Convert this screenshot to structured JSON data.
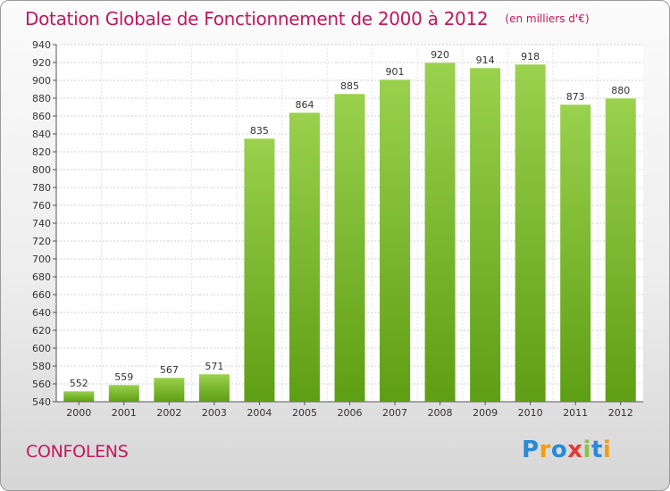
{
  "title": "Dotation Globale de Fonctionnement de 2000 à 2012",
  "subtitle": "(en milliers d'€)",
  "commune": "CONFOLENS",
  "brand": {
    "text": "Proxiti",
    "letters": [
      {
        "char": "P",
        "color": "#2a8ad8"
      },
      {
        "char": "r",
        "color": "#f39c12"
      },
      {
        "char": "o",
        "color": "#2a8ad8"
      },
      {
        "char": "x",
        "color": "#e53935"
      },
      {
        "char": "i",
        "color": "#8bc34a"
      },
      {
        "char": "t",
        "color": "#2a8ad8"
      },
      {
        "char": "i",
        "color": "#f39c12"
      }
    ]
  },
  "colors": {
    "bar_light": "#9ad14e",
    "bar_dark": "#5e9e14",
    "title": "#c2185b"
  },
  "chart_data": {
    "type": "bar",
    "categories": [
      "2000",
      "2001",
      "2002",
      "2003",
      "2004",
      "2005",
      "2006",
      "2007",
      "2008",
      "2009",
      "2010",
      "2011",
      "2012"
    ],
    "values": [
      552,
      559,
      567,
      571,
      835,
      864,
      885,
      901,
      920,
      914,
      918,
      873,
      880
    ],
    "title": "Dotation Globale de Fonctionnement de 2000 à 2012",
    "subtitle": "(en milliers d'€)",
    "xlabel": "",
    "ylabel": "",
    "ylim": [
      540,
      940
    ],
    "yticks": [
      540,
      560,
      580,
      600,
      620,
      640,
      660,
      680,
      700,
      720,
      740,
      760,
      780,
      800,
      820,
      840,
      860,
      880,
      900,
      920,
      940
    ],
    "grid": true,
    "data_labels": true
  }
}
